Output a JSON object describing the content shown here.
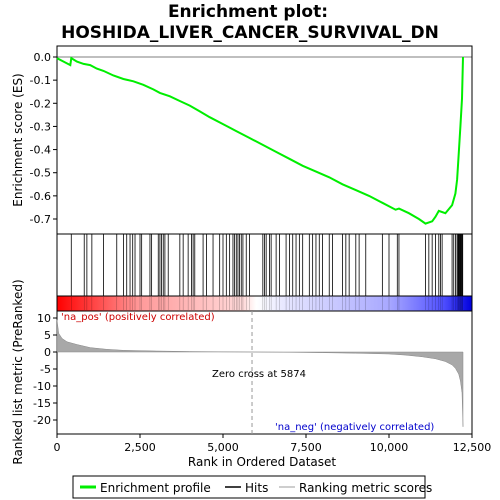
{
  "chart_data": {
    "type": "line",
    "title_line1": "Enrichment plot:",
    "title_line2": "HOSHIDA_LIVER_CANCER_SURVIVAL_DN",
    "xlabel": "Rank in Ordered Dataset",
    "ylabel_top": "Enrichment score (ES)",
    "ylabel_bottom": "Ranked list metric (PreRanked)",
    "xlim": [
      0,
      12500
    ],
    "es_ylim": [
      -0.77,
      0.02
    ],
    "metric_ylim": [
      -23,
      11
    ],
    "x_ticks": [
      "0",
      "2,500",
      "5,000",
      "7,500",
      "10,000",
      "12,500"
    ],
    "x_tick_values": [
      0,
      2500,
      5000,
      7500,
      10000,
      12500
    ],
    "es_ticks": [
      "0.0",
      "-0.1",
      "-0.2",
      "-0.3",
      "-0.4",
      "-0.5",
      "-0.6",
      "-0.7"
    ],
    "es_tick_values": [
      0.0,
      -0.1,
      -0.2,
      -0.3,
      -0.4,
      -0.5,
      -0.6,
      -0.7
    ],
    "metric_ticks": [
      "10",
      "5",
      "0",
      "-5",
      "-10",
      "-15",
      "-20"
    ],
    "metric_tick_values": [
      10,
      5,
      0,
      -5,
      -10,
      -15,
      -20
    ],
    "es_curve": {
      "x": [
        0,
        200,
        400,
        430,
        600,
        800,
        1000,
        1200,
        1400,
        1700,
        2000,
        2300,
        2600,
        2900,
        3100,
        3400,
        3700,
        4000,
        4300,
        4600,
        5000,
        5400,
        5800,
        6200,
        6600,
        7000,
        7400,
        7800,
        8200,
        8600,
        9000,
        9400,
        9800,
        10200,
        10300,
        10600,
        10900,
        11100,
        11300,
        11400,
        11500,
        11700,
        11900,
        12000,
        12050,
        12100,
        12150,
        12200,
        12230
      ],
      "y": [
        -0.005,
        -0.02,
        -0.035,
        -0.005,
        -0.02,
        -0.03,
        -0.035,
        -0.05,
        -0.06,
        -0.08,
        -0.095,
        -0.105,
        -0.12,
        -0.14,
        -0.155,
        -0.17,
        -0.19,
        -0.21,
        -0.235,
        -0.26,
        -0.29,
        -0.32,
        -0.35,
        -0.38,
        -0.41,
        -0.44,
        -0.47,
        -0.495,
        -0.52,
        -0.55,
        -0.575,
        -0.6,
        -0.63,
        -0.66,
        -0.655,
        -0.675,
        -0.7,
        -0.72,
        -0.71,
        -0.69,
        -0.665,
        -0.675,
        -0.64,
        -0.59,
        -0.53,
        -0.42,
        -0.3,
        -0.18,
        0.0
      ]
    },
    "hits": [
      430,
      820,
      900,
      1050,
      1400,
      1800,
      2000,
      2100,
      2200,
      2280,
      2350,
      2500,
      2550,
      2800,
      2850,
      3050,
      3100,
      3150,
      3200,
      3250,
      3350,
      3700,
      3800,
      3950,
      4050,
      4100,
      4150,
      4400,
      4500,
      4700,
      4900,
      5000,
      5100,
      5200,
      5300,
      5350,
      5400,
      5450,
      5500,
      5550,
      5600,
      5700,
      5800,
      6200,
      6250,
      6300,
      6400,
      6450,
      6600,
      6700,
      6900,
      7000,
      7100,
      7200,
      7300,
      7400,
      7600,
      7700,
      7800,
      7900,
      8000,
      8200,
      8300,
      8600,
      8700,
      8800,
      9000,
      9100,
      9300,
      9800,
      10000,
      10250,
      10300,
      11100,
      11200,
      11300,
      11400,
      11500,
      11550,
      11600,
      11900,
      11950,
      12000,
      12050,
      12080,
      12100,
      12120,
      12140,
      12160,
      12180,
      12200,
      12220
    ],
    "metric_curve": {
      "x": [
        0,
        50,
        150,
        300,
        600,
        1000,
        1500,
        2000,
        3000,
        4000,
        5000,
        5874,
        7000,
        8000,
        9000,
        10000,
        10500,
        11000,
        11400,
        11700,
        11900,
        12000,
        12100,
        12150,
        12200,
        12230
      ],
      "y": [
        9.5,
        5.5,
        4.0,
        3.0,
        2.2,
        1.3,
        0.8,
        0.5,
        0.3,
        0.15,
        0.05,
        0.0,
        -0.1,
        -0.2,
        -0.35,
        -0.6,
        -0.9,
        -1.4,
        -2.0,
        -2.8,
        -3.8,
        -4.8,
        -6.5,
        -8.5,
        -12.0,
        -22.0
      ]
    },
    "annotations": {
      "pos_label": "'na_pos' (positively correlated)",
      "neg_label": "'na_neg' (negatively correlated)",
      "zero_cross": "Zero cross at 5874",
      "zero_cross_x": 5874
    },
    "legend": [
      {
        "label": "Enrichment profile",
        "color": "#00ff00"
      },
      {
        "label": "Hits",
        "color": "#000000"
      },
      {
        "label": "Ranking metric scores",
        "color": "#bebebe"
      }
    ],
    "colors": {
      "es_line": "#00ee00",
      "pos_text": "#cc0000",
      "neg_text": "#0000cc",
      "metric_fill": "#a8a8a8",
      "bar_red": "#ff0000",
      "bar_blue": "#0000ff"
    }
  }
}
